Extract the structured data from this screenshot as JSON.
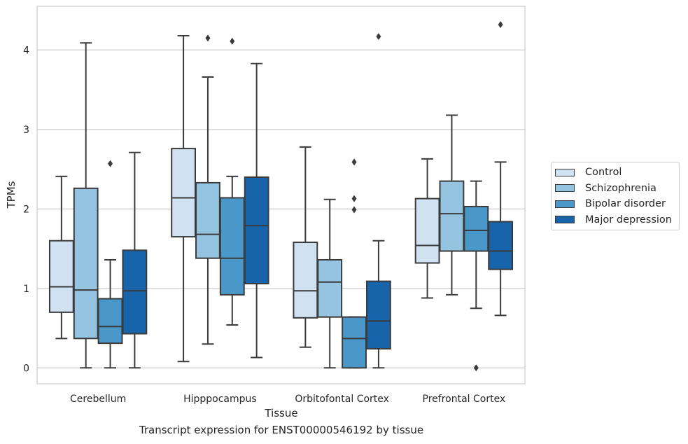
{
  "chart_data": {
    "type": "box",
    "title": "",
    "caption": "Transcript expression for ENST00000546192 by tissue",
    "xlabel": "Tissue",
    "ylabel": "TPMs",
    "ylim": [
      -0.2,
      4.55
    ],
    "yticks": [
      0,
      1,
      2,
      3,
      4
    ],
    "grid": "horizontal",
    "legend_position": "right",
    "categories": [
      "Cerebellum",
      "Hipppocampus",
      "Orbitofontal Cortex",
      "Prefrontal Cortex"
    ],
    "series": [
      {
        "name": "Control",
        "color": "#d0e1f2",
        "boxes": [
          {
            "whisker_low": 0.37,
            "q1": 0.7,
            "median": 1.02,
            "q3": 1.6,
            "whisker_high": 2.41,
            "outliers": []
          },
          {
            "whisker_low": 0.08,
            "q1": 1.65,
            "median": 2.14,
            "q3": 2.76,
            "whisker_high": 4.18,
            "outliers": []
          },
          {
            "whisker_low": 0.26,
            "q1": 0.63,
            "median": 0.97,
            "q3": 1.58,
            "whisker_high": 2.78,
            "outliers": []
          },
          {
            "whisker_low": 0.88,
            "q1": 1.32,
            "median": 1.54,
            "q3": 2.13,
            "whisker_high": 2.63,
            "outliers": []
          }
        ]
      },
      {
        "name": "Schizophrenia",
        "color": "#94c4df",
        "boxes": [
          {
            "whisker_low": 0.0,
            "q1": 0.37,
            "median": 0.98,
            "q3": 2.26,
            "whisker_high": 4.09,
            "outliers": []
          },
          {
            "whisker_low": 0.3,
            "q1": 1.38,
            "median": 1.68,
            "q3": 2.33,
            "whisker_high": 3.66,
            "outliers": [
              4.15
            ]
          },
          {
            "whisker_low": 0.0,
            "q1": 0.64,
            "median": 1.08,
            "q3": 1.36,
            "whisker_high": 2.12,
            "outliers": []
          },
          {
            "whisker_low": 0.92,
            "q1": 1.47,
            "median": 1.94,
            "q3": 2.35,
            "whisker_high": 3.18,
            "outliers": []
          }
        ]
      },
      {
        "name": "Bipolar disorder",
        "color": "#4a98c9",
        "boxes": [
          {
            "whisker_low": 0.0,
            "q1": 0.31,
            "median": 0.52,
            "q3": 0.87,
            "whisker_high": 1.36,
            "outliers": [
              2.57
            ]
          },
          {
            "whisker_low": 0.54,
            "q1": 0.92,
            "median": 1.38,
            "q3": 2.14,
            "whisker_high": 2.41,
            "outliers": [
              4.11
            ]
          },
          {
            "whisker_low": 0.0,
            "q1": 0.0,
            "median": 0.37,
            "q3": 0.64,
            "whisker_high": 0.64,
            "outliers": [
              1.99,
              2.13,
              2.59
            ]
          },
          {
            "whisker_low": 0.75,
            "q1": 1.47,
            "median": 1.73,
            "q3": 2.03,
            "whisker_high": 2.35,
            "outliers": [
              0.0
            ]
          }
        ]
      },
      {
        "name": "Major depression",
        "color": "#1764ab",
        "boxes": [
          {
            "whisker_low": 0.0,
            "q1": 0.43,
            "median": 0.97,
            "q3": 1.48,
            "whisker_high": 2.71,
            "outliers": []
          },
          {
            "whisker_low": 0.13,
            "q1": 1.06,
            "median": 1.79,
            "q3": 2.4,
            "whisker_high": 3.83,
            "outliers": []
          },
          {
            "whisker_low": 0.0,
            "q1": 0.24,
            "median": 0.59,
            "q3": 1.09,
            "whisker_high": 1.6,
            "outliers": [
              4.17
            ]
          },
          {
            "whisker_low": 0.66,
            "q1": 1.24,
            "median": 1.47,
            "q3": 1.84,
            "whisker_high": 2.59,
            "outliers": [
              4.32
            ]
          }
        ]
      }
    ]
  }
}
